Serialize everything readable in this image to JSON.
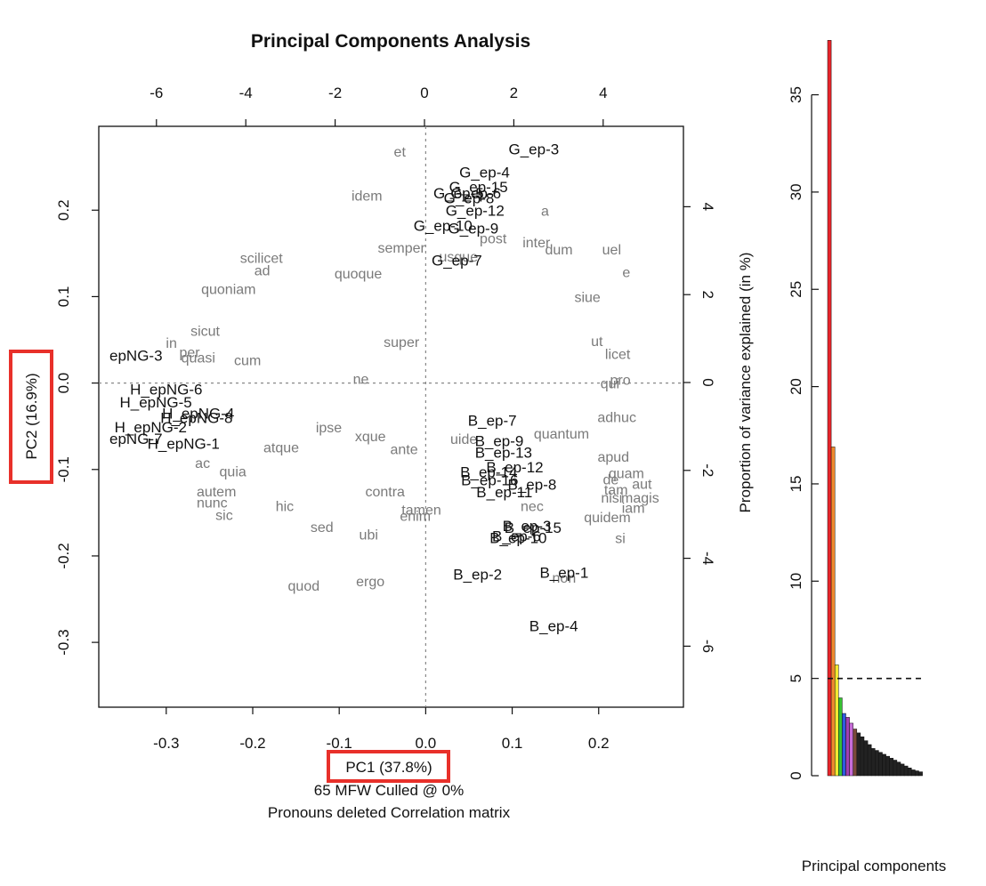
{
  "chart_data": [
    {
      "type": "scatter",
      "title": "Principal Components Analysis",
      "xlabel": "PC1 (37.8%)",
      "ylabel": "PC2 (16.9%)",
      "subtitle_lines": [
        "65 MFW  Culled @ 0%",
        "Pronouns deleted Correlation matrix"
      ],
      "xlim": [
        -0.378,
        0.298
      ],
      "ylim": [
        -0.375,
        0.297
      ],
      "x_ticks": [
        "-0.3",
        "-0.2",
        "-0.1",
        "0.0",
        "0.1",
        "0.2"
      ],
      "y_ticks": [
        "-0.3",
        "-0.2",
        "-0.1",
        "0.0",
        "0.1",
        "0.2"
      ],
      "top_axis_ticks": [
        "-6",
        "-4",
        "-2",
        "0",
        "2",
        "4"
      ],
      "right_axis_ticks": [
        "-6",
        "-4",
        "-2",
        "0",
        "2",
        "4"
      ],
      "reference_lines": {
        "x": 0,
        "y": 0
      },
      "highlighted_labels": [
        "xlabel",
        "ylabel"
      ],
      "highlight_color": "#e8302a",
      "words_color": "#7a7a7a",
      "samples_color": "#111111",
      "words": [
        {
          "label": "et",
          "x": -0.03,
          "y": 0.268
        },
        {
          "label": "idem",
          "x": -0.068,
          "y": 0.217
        },
        {
          "label": "a",
          "x": 0.138,
          "y": 0.2
        },
        {
          "label": "post",
          "x": 0.078,
          "y": 0.168
        },
        {
          "label": "inter",
          "x": 0.128,
          "y": 0.163
        },
        {
          "label": "dum",
          "x": 0.154,
          "y": 0.155
        },
        {
          "label": "uel",
          "x": 0.215,
          "y": 0.155
        },
        {
          "label": "semper",
          "x": -0.028,
          "y": 0.157
        },
        {
          "label": "usque",
          "x": 0.038,
          "y": 0.147
        },
        {
          "label": "scilicet",
          "x": -0.19,
          "y": 0.145
        },
        {
          "label": "ad",
          "x": -0.189,
          "y": 0.131
        },
        {
          "label": "quoque",
          "x": -0.078,
          "y": 0.127
        },
        {
          "label": "e",
          "x": 0.232,
          "y": 0.129
        },
        {
          "label": "quoniam",
          "x": -0.228,
          "y": 0.109
        },
        {
          "label": "siue",
          "x": 0.187,
          "y": 0.1
        },
        {
          "label": "sicut",
          "x": -0.255,
          "y": 0.061
        },
        {
          "label": "in",
          "x": -0.294,
          "y": 0.047
        },
        {
          "label": "ut",
          "x": 0.198,
          "y": 0.049
        },
        {
          "label": "super",
          "x": -0.028,
          "y": 0.048
        },
        {
          "label": "per",
          "x": -0.273,
          "y": 0.036
        },
        {
          "label": "quasi",
          "x": -0.263,
          "y": 0.03
        },
        {
          "label": "cum",
          "x": -0.206,
          "y": 0.027
        },
        {
          "label": "licet",
          "x": 0.222,
          "y": 0.034
        },
        {
          "label": "ne",
          "x": -0.075,
          "y": 0.005
        },
        {
          "label": "pro",
          "x": 0.225,
          "y": 0.004
        },
        {
          "label": "qui",
          "x": 0.213,
          "y": 0.0
        },
        {
          "label": "adhuc",
          "x": 0.221,
          "y": -0.039
        },
        {
          "label": "ipse",
          "x": -0.112,
          "y": -0.051
        },
        {
          "label": "quantum",
          "x": 0.157,
          "y": -0.058
        },
        {
          "label": "xque",
          "x": -0.064,
          "y": -0.061
        },
        {
          "label": "uide",
          "x": 0.044,
          "y": -0.064
        },
        {
          "label": "atque",
          "x": -0.167,
          "y": -0.074
        },
        {
          "label": "ante",
          "x": -0.025,
          "y": -0.076
        },
        {
          "label": "apud",
          "x": 0.217,
          "y": -0.085
        },
        {
          "label": "ac",
          "x": -0.258,
          "y": -0.092
        },
        {
          "label": "quia",
          "x": -0.223,
          "y": -0.102
        },
        {
          "label": "quam",
          "x": 0.232,
          "y": -0.104
        },
        {
          "label": "de",
          "x": 0.214,
          "y": -0.111
        },
        {
          "label": "aut",
          "x": 0.25,
          "y": -0.116
        },
        {
          "label": "tam",
          "x": 0.22,
          "y": -0.123
        },
        {
          "label": "autem",
          "x": -0.242,
          "y": -0.125
        },
        {
          "label": "contra",
          "x": -0.047,
          "y": -0.125
        },
        {
          "label": "nisi",
          "x": 0.215,
          "y": -0.132
        },
        {
          "label": "magis",
          "x": 0.248,
          "y": -0.132
        },
        {
          "label": "nunc",
          "x": -0.247,
          "y": -0.138
        },
        {
          "label": "nec",
          "x": 0.123,
          "y": -0.142
        },
        {
          "label": "hic",
          "x": -0.163,
          "y": -0.142
        },
        {
          "label": "tamen",
          "x": -0.005,
          "y": -0.146
        },
        {
          "label": "iam",
          "x": 0.24,
          "y": -0.144
        },
        {
          "label": "sic",
          "x": -0.233,
          "y": -0.152
        },
        {
          "label": "enim",
          "x": -0.012,
          "y": -0.153
        },
        {
          "label": "quidem",
          "x": 0.21,
          "y": -0.155
        },
        {
          "label": "sed",
          "x": -0.12,
          "y": -0.166
        },
        {
          "label": "ubi",
          "x": -0.066,
          "y": -0.175
        },
        {
          "label": "si",
          "x": 0.225,
          "y": -0.179
        },
        {
          "label": "ergo",
          "x": -0.064,
          "y": -0.229
        },
        {
          "label": "non",
          "x": 0.16,
          "y": -0.225
        },
        {
          "label": "quod",
          "x": -0.141,
          "y": -0.234
        }
      ],
      "samples": [
        {
          "label": "G_ep-3",
          "x": 0.125,
          "y": 0.271
        },
        {
          "label": "G_ep-4",
          "x": 0.068,
          "y": 0.244
        },
        {
          "label": "G_ep-15",
          "x": 0.061,
          "y": 0.227
        },
        {
          "label": "G_ep-6",
          "x": 0.058,
          "y": 0.22
        },
        {
          "label": "G_ep-5",
          "x": 0.038,
          "y": 0.22
        },
        {
          "label": "G_ep-8",
          "x": 0.05,
          "y": 0.214
        },
        {
          "label": "G_ep-12",
          "x": 0.057,
          "y": 0.2
        },
        {
          "label": "G_ep-10",
          "x": 0.02,
          "y": 0.182
        },
        {
          "label": "G_ep-9",
          "x": 0.055,
          "y": 0.179
        },
        {
          "label": "G_ep-7",
          "x": 0.036,
          "y": 0.142
        },
        {
          "label": "epNG-3",
          "x": -0.335,
          "y": 0.032
        },
        {
          "label": "H_epNG-6",
          "x": -0.3,
          "y": -0.007
        },
        {
          "label": "H_epNG-5",
          "x": -0.312,
          "y": -0.022
        },
        {
          "label": "H_epNG-4",
          "x": -0.263,
          "y": -0.035
        },
        {
          "label": "H_epNG-8",
          "x": -0.265,
          "y": -0.04
        },
        {
          "label": "H_epNG-2",
          "x": -0.318,
          "y": -0.051
        },
        {
          "label": "epNG-7",
          "x": -0.335,
          "y": -0.064
        },
        {
          "label": "H_epNG-1",
          "x": -0.28,
          "y": -0.07
        },
        {
          "label": "B_ep-7",
          "x": 0.077,
          "y": -0.043
        },
        {
          "label": "B_ep-9",
          "x": 0.085,
          "y": -0.067
        },
        {
          "label": "B_ep-13",
          "x": 0.09,
          "y": -0.08
        },
        {
          "label": "B_ep-12",
          "x": 0.103,
          "y": -0.097
        },
        {
          "label": "B_ep-14",
          "x": 0.073,
          "y": -0.103
        },
        {
          "label": "B_ep-16",
          "x": 0.074,
          "y": -0.112
        },
        {
          "label": "B_ep-8",
          "x": 0.123,
          "y": -0.117
        },
        {
          "label": "B_ep-11",
          "x": 0.091,
          "y": -0.126
        },
        {
          "label": "B_ep-3",
          "x": 0.117,
          "y": -0.165
        },
        {
          "label": "B_ep-15",
          "x": 0.124,
          "y": -0.167
        },
        {
          "label": "B_ep-6",
          "x": 0.105,
          "y": -0.177
        },
        {
          "label": "B_ep-10",
          "x": 0.107,
          "y": -0.179
        },
        {
          "label": "B_ep-2",
          "x": 0.06,
          "y": -0.221
        },
        {
          "label": "B_ep-1",
          "x": 0.16,
          "y": -0.219
        },
        {
          "label": "B_ep-4",
          "x": 0.148,
          "y": -0.281
        }
      ]
    },
    {
      "type": "bar",
      "ylabel": "Proportion of variance explained (in %)",
      "xlabel": "Principal components",
      "ylim": [
        0,
        38.5
      ],
      "y_ticks": [
        "0",
        "5",
        "10",
        "15",
        "20",
        "25",
        "30",
        "35"
      ],
      "reference_line": 5,
      "values": [
        37.8,
        16.9,
        5.7,
        4.0,
        3.2,
        3.0,
        2.7,
        2.4,
        2.2,
        2.0,
        1.8,
        1.6,
        1.4,
        1.3,
        1.2,
        1.1,
        1.0,
        0.9,
        0.8,
        0.7,
        0.6,
        0.5,
        0.4,
        0.3,
        0.25,
        0.2
      ],
      "bar_colors": [
        "#e8242a",
        "#f08a2e",
        "#f2e832",
        "#36c232",
        "#2f5be0",
        "#a23fb2",
        "#c86dd8",
        "#7a4a3a",
        "#222222"
      ],
      "default_bar_color": "#222222"
    }
  ]
}
